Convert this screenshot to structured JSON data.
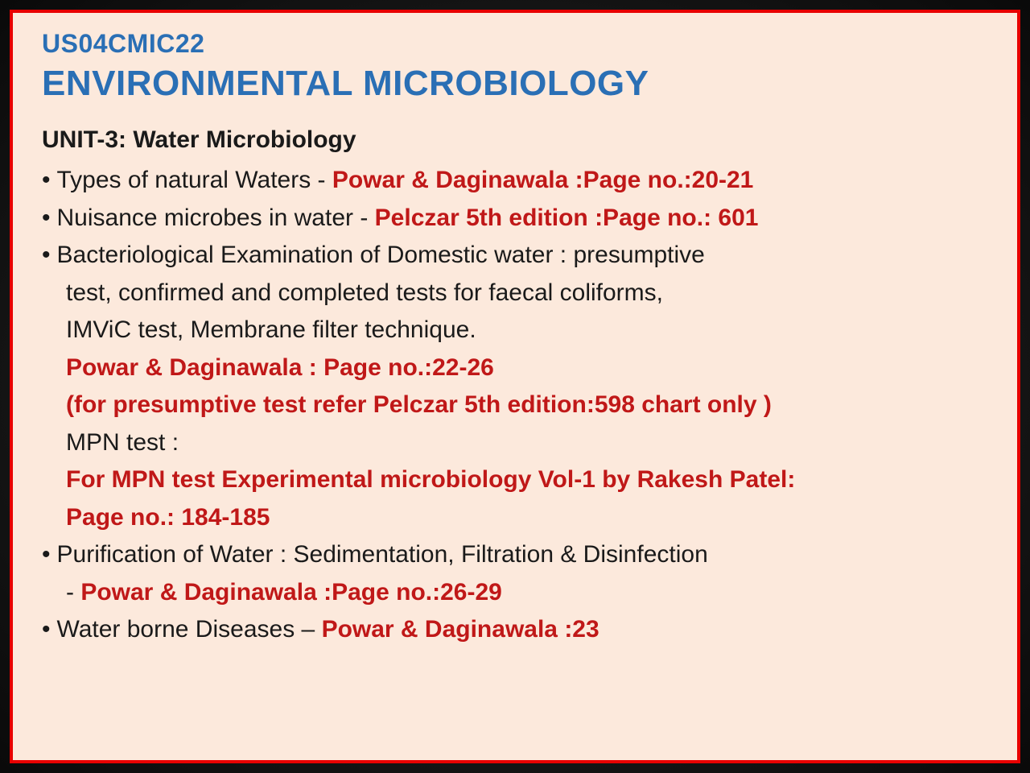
{
  "colors": {
    "frame_bg_inner": "#2a2a2a",
    "frame_bg_outer": "#0a0a0a",
    "border": "#e80000",
    "page_bg": "#fce9dc",
    "heading_blue": "#2a6fb5",
    "body_text": "#1a1a1a",
    "reference_red": "#c01818"
  },
  "typography": {
    "code_fontsize": 32,
    "title_fontsize": 44,
    "unit_fontsize": 30,
    "body_fontsize": 30,
    "line_height": 1.55,
    "heading_weight": 700,
    "ref_weight": 700
  },
  "course_code": "US04CMIC22",
  "course_title": "ENVIRONMENTAL MICROBIOLOGY",
  "unit_heading": "UNIT-3: Water Microbiology",
  "items": {
    "b1_text": "Types of natural Waters - ",
    "b1_ref": "Powar & Daginawala :Page no.:20-21",
    "b2_text": "Nuisance microbes in water - ",
    "b2_ref": "Pelczar 5th  edition :Page no.: 601",
    "b3_l1": "Bacteriological Examination of Domestic water : presumptive",
    "b3_l2": "test, confirmed and completed tests for faecal coliforms,",
    "b3_l3": "IMViC test, Membrane filter technique.",
    "b3_ref1": "Powar & Daginawala : Page no.:22-26",
    "b3_ref2": "(for presumptive test refer Pelczar 5th  edition:598 chart only )",
    "b3_mpn": "MPN test :",
    "b3_ref3a": "For MPN test Experimental microbiology Vol-1 by Rakesh Patel:",
    "b3_ref3b": "Page no.: 184-185",
    "b4_text": "Purification of Water : Sedimentation, Filtration & Disinfection",
    "b4_dash": "- ",
    "b4_ref": "Powar & Daginawala :Page no.:26-29",
    "b5_text": "Water borne Diseases – ",
    "b5_ref": "Powar & Daginawala :23"
  }
}
